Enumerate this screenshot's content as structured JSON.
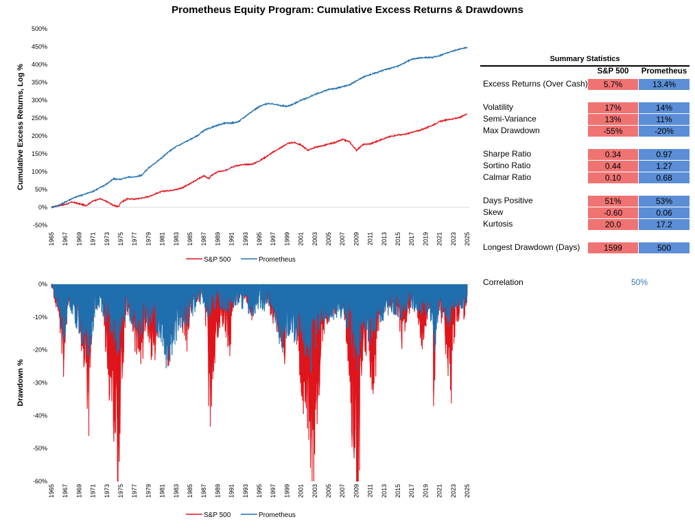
{
  "title": "Prometheus Equity Program: Cumulative Excess Returns & Drawdowns",
  "colors": {
    "sp500": "#e0141b",
    "prometheus": "#1f6fae",
    "cell_red": "#f07373",
    "cell_blue": "#5b8ed6",
    "corr": "#2e75b6"
  },
  "chart_data": [
    {
      "type": "line",
      "name": "cumulative",
      "ylabel": "Cumulative Excess Returns, Log %",
      "ylim": [
        -50,
        500
      ],
      "yticks": [
        "500%",
        "450%",
        "400%",
        "350%",
        "300%",
        "250%",
        "200%",
        "150%",
        "100%",
        "50%",
        "0%",
        "-50%"
      ],
      "xlim": [
        1965,
        2025.3
      ],
      "xticks": [
        "1965",
        "1967",
        "1969",
        "1971",
        "1973",
        "1975",
        "1977",
        "1979",
        "1981",
        "1983",
        "1985",
        "1987",
        "1989",
        "1991",
        "1993",
        "1995",
        "1997",
        "1999",
        "2001",
        "2003",
        "2005",
        "2007",
        "2009",
        "2011",
        "2013",
        "2015",
        "2017",
        "2019",
        "2021",
        "2023",
        "2025"
      ],
      "legend": [
        "S&P 500",
        "Prometheus"
      ],
      "legend_position": "bottom",
      "series": [
        {
          "name": "S&P 500",
          "x": [
            1965,
            1966,
            1967,
            1968,
            1969,
            1970,
            1971,
            1972,
            1973,
            1974,
            1974.7,
            1975,
            1976,
            1977,
            1978,
            1979,
            1980,
            1981,
            1982,
            1983,
            1984,
            1985,
            1986,
            1987,
            1987.8,
            1988,
            1989,
            1990,
            1991,
            1992,
            1993,
            1994,
            1995,
            1996,
            1997,
            1998,
            1999,
            2000,
            2001,
            2002,
            2003,
            2004,
            2005,
            2006,
            2007,
            2008,
            2009,
            2010,
            2011,
            2012,
            2013,
            2014,
            2015,
            2016,
            2017,
            2018,
            2019,
            2020,
            2021,
            2022,
            2023,
            2024,
            2025
          ],
          "values": [
            0,
            5,
            8,
            15,
            10,
            5,
            18,
            24,
            16,
            5,
            2,
            14,
            24,
            23,
            26,
            30,
            38,
            45,
            47,
            50,
            56,
            66,
            78,
            88,
            80,
            88,
            100,
            102,
            113,
            118,
            120,
            121,
            130,
            142,
            155,
            166,
            178,
            182,
            175,
            160,
            168,
            172,
            177,
            182,
            190,
            184,
            160,
            176,
            178,
            185,
            193,
            199,
            203,
            204,
            210,
            215,
            222,
            230,
            240,
            245,
            248,
            252,
            263
          ]
        },
        {
          "name": "Prometheus",
          "x": [
            1965,
            1966,
            1967,
            1968,
            1969,
            1970,
            1971,
            1972,
            1973,
            1974,
            1975,
            1976,
            1977,
            1978,
            1979,
            1980,
            1981,
            1982,
            1983,
            1984,
            1985,
            1986,
            1987,
            1988,
            1989,
            1990,
            1991,
            1992,
            1993,
            1994,
            1995,
            1996,
            1997,
            1998,
            1999,
            2000,
            2001,
            2002,
            2003,
            2004,
            2005,
            2006,
            2007,
            2008,
            2009,
            2010,
            2011,
            2012,
            2013,
            2014,
            2015,
            2016,
            2017,
            2018,
            2019,
            2020,
            2021,
            2022,
            2023,
            2024,
            2025
          ],
          "values": [
            0,
            5,
            15,
            25,
            32,
            38,
            45,
            55,
            66,
            80,
            78,
            85,
            85,
            90,
            110,
            125,
            140,
            157,
            170,
            180,
            190,
            200,
            215,
            223,
            230,
            236,
            236,
            240,
            255,
            270,
            282,
            290,
            290,
            285,
            283,
            290,
            300,
            307,
            316,
            323,
            330,
            333,
            338,
            343,
            354,
            365,
            372,
            378,
            385,
            390,
            395,
            405,
            415,
            418,
            420,
            420,
            425,
            432,
            438,
            444,
            448
          ]
        }
      ]
    },
    {
      "type": "area",
      "name": "drawdown",
      "ylabel": "Drawdown %",
      "ylim": [
        -60,
        0
      ],
      "yticks": [
        "0%",
        "-10%",
        "-20%",
        "-30%",
        "-40%",
        "-50%",
        "-60%"
      ],
      "xlim": [
        1965,
        2025.3
      ],
      "xticks": [
        "1965",
        "1967",
        "1969",
        "1971",
        "1973",
        "1975",
        "1977",
        "1979",
        "1981",
        "1983",
        "1985",
        "1987",
        "1989",
        "1991",
        "1993",
        "1995",
        "1997",
        "1999",
        "2001",
        "2003",
        "2005",
        "2007",
        "2009",
        "2011",
        "2013",
        "2015",
        "2017",
        "2019",
        "2021",
        "2023",
        "2025"
      ],
      "legend": [
        "S&P 500",
        "Prometheus"
      ],
      "legend_position": "bottom",
      "series": [
        {
          "name": "S&P 500",
          "x": [
            1965,
            1965.5,
            1966,
            1966.8,
            1967.3,
            1968,
            1968.5,
            1969,
            1969.5,
            1970,
            1970.4,
            1970.8,
            1971.5,
            1972,
            1972.5,
            1973,
            1973.5,
            1974,
            1974.5,
            1974.8,
            1975.2,
            1975.6,
            1976,
            1976.6,
            1977,
            1977.5,
            1978,
            1978.5,
            1979,
            1979.5,
            1980,
            1980.3,
            1980.8,
            1981.5,
            1982,
            1982.6,
            1983,
            1984,
            1984.6,
            1985,
            1986,
            1987,
            1987.5,
            1987.8,
            1988.2,
            1988.8,
            1989.5,
            1990,
            1990.8,
            1991,
            1992,
            1993,
            1994,
            1995,
            1996,
            1997,
            1998,
            1998.6,
            1999,
            2000,
            2000.5,
            2001,
            2001.7,
            2002,
            2002.5,
            2002.8,
            2003.2,
            2003.8,
            2004,
            2005,
            2006,
            2007,
            2007.5,
            2008,
            2008.5,
            2008.9,
            2009.2,
            2009.6,
            2010,
            2010.5,
            2011,
            2011.7,
            2012,
            2013,
            2014,
            2015,
            2015.7,
            2016,
            2017,
            2018,
            2018.9,
            2019.3,
            2020,
            2020.2,
            2020.5,
            2021,
            2022,
            2022.5,
            2022.8,
            2023,
            2023.5,
            2024,
            2024.5,
            2025
          ],
          "values": [
            0,
            -3,
            -6,
            -20,
            -4,
            -3,
            -6,
            -10,
            -16,
            -25,
            -33,
            -8,
            -4,
            -2,
            -6,
            -20,
            -25,
            -32,
            -45,
            -40,
            -20,
            -10,
            -6,
            -9,
            -14,
            -18,
            -17,
            -12,
            -10,
            -18,
            -17,
            -9,
            -5,
            -15,
            -18,
            -9,
            -5,
            -10,
            -14,
            -5,
            -3,
            -2,
            -15,
            -33,
            -22,
            -14,
            -8,
            -9,
            -18,
            -5,
            -3,
            -2,
            -7,
            -2,
            -3,
            -8,
            -10,
            -18,
            -8,
            -6,
            -15,
            -28,
            -33,
            -32,
            -45,
            -47,
            -35,
            -20,
            -12,
            -7,
            -5,
            -3,
            -10,
            -22,
            -40,
            -50,
            -55,
            -30,
            -18,
            -15,
            -20,
            -25,
            -10,
            -5,
            -4,
            -6,
            -14,
            -10,
            -3,
            -8,
            -20,
            -5,
            -3,
            -34,
            -10,
            -5,
            -15,
            -22,
            -25,
            -12,
            -10,
            -4,
            -8,
            -2
          ]
        },
        {
          "name": "Prometheus",
          "x": [
            1965,
            1966,
            1966.8,
            1967.5,
            1968,
            1969,
            1969.5,
            1970,
            1970.5,
            1971,
            1971.5,
            1972,
            1973,
            1973.5,
            1974,
            1974.5,
            1975,
            1975.5,
            1976,
            1977,
            1977.5,
            1978,
            1979,
            1980,
            1981,
            1981.5,
            1982,
            1983,
            1984,
            1985,
            1986,
            1987,
            1987.8,
            1988,
            1989,
            1990,
            1991,
            1992,
            1993,
            1994,
            1995,
            1996,
            1997,
            1998,
            1998.6,
            1999,
            2000,
            2001,
            2002,
            2002.5,
            2003,
            2004,
            2005,
            2006,
            2007,
            2007.5,
            2008,
            2008.9,
            2009.5,
            2010,
            2011,
            2012,
            2013,
            2014,
            2015,
            2016,
            2017,
            2018,
            2019,
            2020,
            2020.2,
            2021,
            2022,
            2022.5,
            2023,
            2024,
            2025
          ],
          "values": [
            0,
            -5,
            -14,
            -3,
            -6,
            -10,
            -12,
            -15,
            -16,
            -9,
            -5,
            -4,
            -8,
            -10,
            -12,
            -14,
            -12,
            -8,
            -6,
            -9,
            -13,
            -10,
            -8,
            -9,
            -12,
            -17,
            -16,
            -12,
            -8,
            -8,
            -4,
            -4,
            -8,
            -5,
            -4,
            -5,
            -5,
            -4,
            -5,
            -6,
            -4,
            -5,
            -5,
            -15,
            -17,
            -10,
            -12,
            -15,
            -16,
            -18,
            -14,
            -7,
            -8,
            -8,
            -6,
            -8,
            -10,
            -20,
            -13,
            -9,
            -14,
            -7,
            -7,
            -5,
            -7,
            -6,
            -4,
            -6,
            -5,
            -8,
            -15,
            -5,
            -8,
            -8,
            -6,
            -5,
            -3
          ]
        }
      ]
    }
  ],
  "stats": {
    "title": "Summary Statistics",
    "col_sp500": "S&P 500",
    "col_prometheus": "Prometheus",
    "rows": [
      {
        "label": "Excess Returns (Over Cash)",
        "sp500": "5.7%",
        "prometheus": "13.4%"
      },
      {
        "label": "Volatility",
        "sp500": "17%",
        "prometheus": "14%"
      },
      {
        "label": "Semi-Variance",
        "sp500": "13%",
        "prometheus": "11%"
      },
      {
        "label": "Max Drawdown",
        "sp500": "-55%",
        "prometheus": "-20%"
      },
      {
        "label": "Sharpe Ratio",
        "sp500": "0.34",
        "prometheus": "0.97"
      },
      {
        "label": "Sortino Ratio",
        "sp500": "0.44",
        "prometheus": "1.27"
      },
      {
        "label": "Calmar Ratio",
        "sp500": "0.10",
        "prometheus": "0.68"
      },
      {
        "label": "Days Positive",
        "sp500": "51%",
        "prometheus": "53%"
      },
      {
        "label": "Skew",
        "sp500": "-0.60",
        "prometheus": "0.06"
      },
      {
        "label": "Kurtosis",
        "sp500": "20.0",
        "prometheus": "17.2"
      },
      {
        "label": "Longest Drawdown (Days)",
        "sp500": "1599",
        "prometheus": "500"
      }
    ],
    "correlation_label": "Correlation",
    "correlation_value": "50%"
  }
}
